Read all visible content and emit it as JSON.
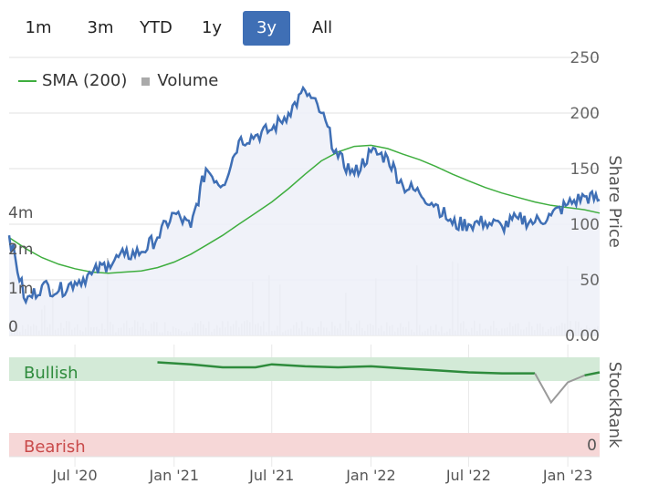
{
  "range_buttons": [
    {
      "label": "1m",
      "active": false
    },
    {
      "label": "3m",
      "active": false
    },
    {
      "label": "YTD",
      "active": false
    },
    {
      "label": "1y",
      "active": false
    },
    {
      "label": "3y",
      "active": true
    },
    {
      "label": "All",
      "active": false
    }
  ],
  "legend": {
    "sma_label": "SMA (200)",
    "volume_label": "Volume"
  },
  "colors": {
    "price": "#3f6fb5",
    "sma": "#3fae3f",
    "volume": "#c8c8c8",
    "bullish_band": "#d3ead7",
    "bearish_band": "#f6d7d7",
    "rank_bull": "#2e8b3c",
    "rank_neutral": "#9a9a9a"
  },
  "chart_data": [
    {
      "type": "line",
      "ylabel": "Share Price",
      "ylim": [
        0,
        250
      ],
      "y_ticks": [
        "250",
        "200",
        "150",
        "100",
        "50",
        "0.00"
      ],
      "volume_ticks": [
        "4m",
        "2m",
        "1m",
        "0"
      ],
      "x_ticks": [
        "Jul '20",
        "Jan '21",
        "Jul '21",
        "Jan '22",
        "Jul '22",
        "Jan '23"
      ],
      "x_range": [
        "2020-03",
        "2023-03"
      ],
      "grid": true,
      "legend_position": "top-left",
      "series": [
        {
          "name": "Price",
          "x": [
            "2020-03",
            "2020-04",
            "2020-05",
            "2020-06",
            "2020-07",
            "2020-08",
            "2020-09",
            "2020-10",
            "2020-11",
            "2020-12",
            "2021-01",
            "2021-02",
            "2021-03",
            "2021-04",
            "2021-05",
            "2021-06",
            "2021-07",
            "2021-08",
            "2021-09",
            "2021-10",
            "2021-11",
            "2021-12",
            "2022-01",
            "2022-02",
            "2022-03",
            "2022-04",
            "2022-05",
            "2022-06",
            "2022-07",
            "2022-08",
            "2022-09",
            "2022-10",
            "2022-11",
            "2022-12",
            "2023-01",
            "2023-02",
            "2023-03"
          ],
          "values": [
            90,
            30,
            45,
            40,
            48,
            55,
            65,
            72,
            75,
            88,
            110,
            97,
            150,
            135,
            175,
            180,
            185,
            200,
            220,
            200,
            160,
            145,
            165,
            160,
            135,
            128,
            118,
            100,
            100,
            102,
            98,
            105,
            102,
            108,
            118,
            125,
            122
          ]
        },
        {
          "name": "SMA (200)",
          "x": [
            "2020-03",
            "2020-04",
            "2020-05",
            "2020-06",
            "2020-07",
            "2020-08",
            "2020-09",
            "2020-10",
            "2020-11",
            "2020-12",
            "2021-01",
            "2021-02",
            "2021-03",
            "2021-04",
            "2021-05",
            "2021-06",
            "2021-07",
            "2021-08",
            "2021-09",
            "2021-10",
            "2021-11",
            "2021-12",
            "2022-01",
            "2022-02",
            "2022-03",
            "2022-04",
            "2022-05",
            "2022-06",
            "2022-07",
            "2022-08",
            "2022-09",
            "2022-10",
            "2022-11",
            "2022-12",
            "2023-01",
            "2023-02",
            "2023-03"
          ],
          "values": [
            88,
            78,
            70,
            64,
            60,
            57,
            56,
            57,
            58,
            61,
            66,
            73,
            81,
            90,
            100,
            110,
            120,
            132,
            145,
            157,
            165,
            170,
            171,
            168,
            163,
            158,
            152,
            145,
            139,
            133,
            128,
            124,
            120,
            117,
            115,
            113,
            110
          ]
        }
      ]
    },
    {
      "type": "line",
      "ylabel": "StockRank",
      "ylim": [
        0,
        100
      ],
      "y_ticks": [
        "0"
      ],
      "bands": [
        "Bullish",
        "Bearish"
      ],
      "series": [
        {
          "name": "StockRank",
          "x": [
            "2020-12",
            "2021-02",
            "2021-04",
            "2021-06",
            "2021-07",
            "2021-09",
            "2021-11",
            "2022-01",
            "2022-03",
            "2022-05",
            "2022-07",
            "2022-09",
            "2022-11",
            "2022-12",
            "2023-01",
            "2023-02",
            "2023-03"
          ],
          "values": [
            95,
            93,
            90,
            90,
            93,
            91,
            90,
            91,
            89,
            87,
            85,
            84,
            84,
            55,
            75,
            82,
            85
          ]
        }
      ]
    }
  ]
}
